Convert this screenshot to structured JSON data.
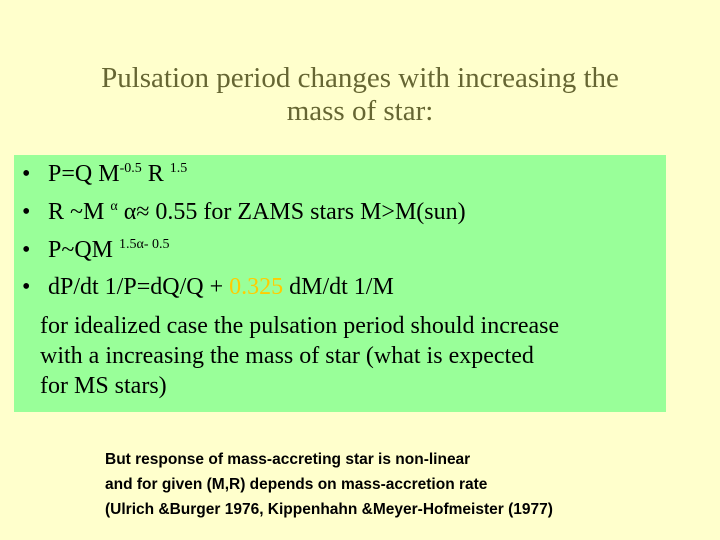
{
  "title": {
    "line1": "Pulsation period changes with increasing the",
    "line2": "mass of star:"
  },
  "bullets": {
    "marker": "•",
    "b1": {
      "a": "P=Q M",
      "sup1": "-0.5",
      "b": " R ",
      "sup2": "1.5"
    },
    "b2": {
      "a": "R ~M ",
      "sup1": "α",
      "b": "   α≈ 0.55 for  ZAMS stars M>M(sun)"
    },
    "b3": {
      "a": "P~QM ",
      "sup1": "1.5α- 0.5"
    },
    "b4": {
      "a": "dP/dt 1/P=dQ/Q + ",
      "highlight": "0.325",
      "b": " d",
      "c": "M/dt 1/M"
    }
  },
  "paragraph": [
    "for idealized case the pulsation period should increase",
    " with a increasing the mass of star (what is expected",
    " for MS stars)"
  ],
  "note": [
    "But response of  mass-accreting star is  non-linear",
    "and for given (M,R) depends on mass-accretion rate",
    "(Ulrich &Burger 1976, Kippenhahn &Meyer-Hofmeister (1977)"
  ],
  "colors": {
    "background": "#ffffcc",
    "box": "#99ff99",
    "title": "#666633",
    "highlight": "#ffcc00"
  }
}
